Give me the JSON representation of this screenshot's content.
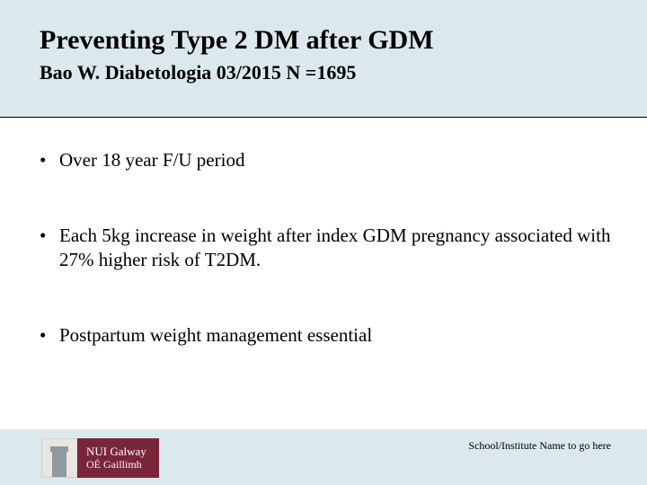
{
  "colors": {
    "band": "#dbe8ec",
    "logo_bg": "#7a263a",
    "text": "#000000",
    "background": "#ffffff"
  },
  "header": {
    "title": "Preventing Type 2 DM after GDM",
    "subtitle": "Bao W. Diabetologia 03/2015    N =1695"
  },
  "bullets": [
    "Over 18 year F/U period",
    "Each 5kg increase in weight after index GDM pregnancy associated with 27% higher risk of T2DM.",
    "Postpartum weight management essential"
  ],
  "logo": {
    "line1": "NUI Galway",
    "line2": "OÉ Gaillimh"
  },
  "footer": {
    "note": "School/Institute Name to go here"
  }
}
